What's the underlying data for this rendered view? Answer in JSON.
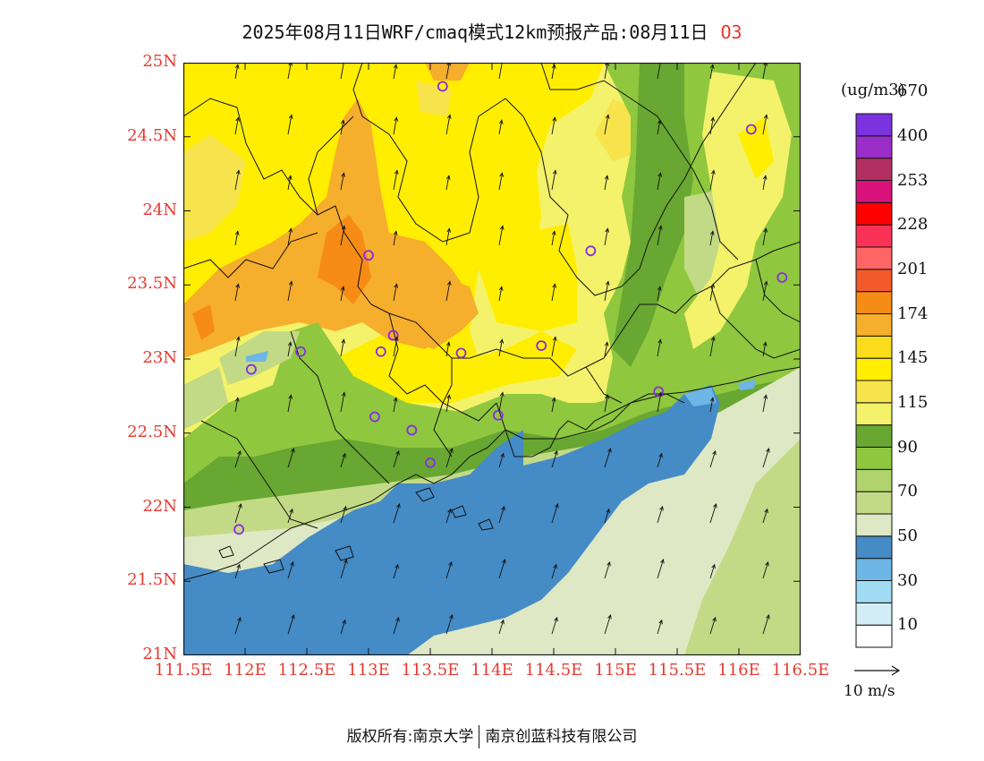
{
  "title": {
    "main": "2025年08月11日WRF/cmaq模式12km预报产品:08月11日",
    "species": "O3"
  },
  "map": {
    "lon_range": [
      111.5,
      116.5
    ],
    "lat_range": [
      21.0,
      25.0
    ],
    "y_tick_labels": [
      "25N",
      "24.5N",
      "24N",
      "23.5N",
      "23N",
      "22.5N",
      "22N",
      "21.5N",
      "21N"
    ],
    "x_tick_labels": [
      "111.5E",
      "112E",
      "112.5E",
      "113E",
      "113.5E",
      "114E",
      "114.5E",
      "115E",
      "115.5E",
      "116E",
      "116.5E"
    ],
    "stations": [
      {
        "lon": 113.6,
        "lat": 24.84
      },
      {
        "lon": 113.0,
        "lat": 23.7
      },
      {
        "lon": 113.2,
        "lat": 23.16
      },
      {
        "lon": 113.1,
        "lat": 23.05
      },
      {
        "lon": 113.75,
        "lat": 23.04
      },
      {
        "lon": 114.4,
        "lat": 23.09
      },
      {
        "lon": 114.8,
        "lat": 23.73
      },
      {
        "lon": 112.45,
        "lat": 23.05
      },
      {
        "lon": 112.05,
        "lat": 22.93
      },
      {
        "lon": 113.05,
        "lat": 22.61
      },
      {
        "lon": 113.35,
        "lat": 22.52
      },
      {
        "lon": 114.05,
        "lat": 22.62
      },
      {
        "lon": 113.5,
        "lat": 22.3
      },
      {
        "lon": 111.95,
        "lat": 21.85
      },
      {
        "lon": 115.35,
        "lat": 22.78
      },
      {
        "lon": 116.1,
        "lat": 24.55
      },
      {
        "lon": 116.35,
        "lat": 23.55
      }
    ],
    "wind_direction": "southerly, north-northeast"
  },
  "colorbar": {
    "units": "(ug/m3)",
    "colors": [
      "#ffffff",
      "#d4eef8",
      "#a0dcf3",
      "#6db6e6",
      "#458bc6",
      "#dfe8c4",
      "#c2da85",
      "#b0d46b",
      "#8fc73f",
      "#68a731",
      "#f3f26a",
      "#f7e44c",
      "#ffee00",
      "#fadc1a",
      "#f6ae2d",
      "#f68c16",
      "#f35a29",
      "#fe6565",
      "#fa3257",
      "#ff0000",
      "#d8127a",
      "#b23061",
      "#9b2dc8",
      "#7b32df"
    ],
    "labels": [
      "10",
      "30",
      "50",
      "70",
      "90",
      "115",
      "145",
      "174",
      "201",
      "228",
      "253",
      "400",
      "670"
    ]
  },
  "wind_reference": "10 m/s",
  "copyright": {
    "left": "版权所有:南京大学",
    "right": "南京创蓝科技有限公司"
  }
}
